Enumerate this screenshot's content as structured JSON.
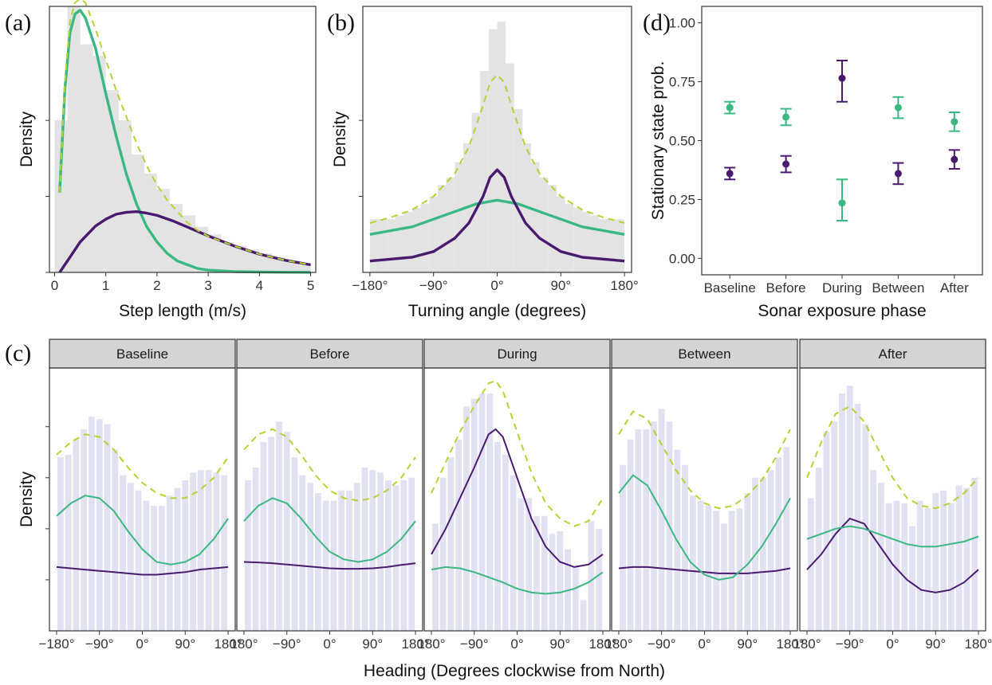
{
  "colors": {
    "moving": "#3ab882",
    "stationary": "#4a1a6e",
    "overall": "#b5d334",
    "hist_grey": "#e3e3e3",
    "hist_lavender": "#e1e1f2",
    "strip_fill": "#d4d4d4",
    "frame": "#333333"
  },
  "chart_data": [
    {
      "id": "a",
      "type": "area",
      "panel_label": "(a)",
      "xlabel": "Step length (m/s)",
      "ylabel": "Density",
      "xlim": [
        -0.1,
        5.1
      ],
      "ylim": [
        0,
        0.7
      ],
      "x_ticks": [
        0,
        1,
        2,
        3,
        4,
        5
      ],
      "x_tick_labels": [
        "0",
        "1",
        "2",
        "3",
        "4",
        "5"
      ],
      "y_tick_values": [
        0,
        0.2,
        0.4
      ],
      "grid": false,
      "histogram": {
        "bin_edges": [
          0.0,
          0.25,
          0.5,
          0.75,
          1.0,
          1.25,
          1.5,
          1.75,
          2.0,
          2.25,
          2.5,
          2.75,
          3.0,
          3.25,
          3.5,
          3.75,
          4.0,
          4.25,
          4.5,
          4.75,
          5.0
        ],
        "density": [
          0.4,
          0.7,
          0.6,
          0.57,
          0.48,
          0.4,
          0.31,
          0.26,
          0.22,
          0.18,
          0.15,
          0.12,
          0.1,
          0.08,
          0.07,
          0.06,
          0.05,
          0.04,
          0.03,
          0.02
        ]
      },
      "series": [
        {
          "state": "moving",
          "style": "solid",
          "x": [
            0.1,
            0.2,
            0.3,
            0.4,
            0.5,
            0.6,
            0.8,
            1.0,
            1.2,
            1.4,
            1.6,
            1.8,
            2.0,
            2.2,
            2.4,
            2.6,
            2.8,
            3.0,
            3.5,
            4.0,
            4.5,
            5.0
          ],
          "y": [
            0.21,
            0.48,
            0.63,
            0.68,
            0.69,
            0.67,
            0.59,
            0.47,
            0.36,
            0.26,
            0.18,
            0.12,
            0.08,
            0.05,
            0.03,
            0.02,
            0.01,
            0.006,
            0.002,
            0.001,
            0.0005,
            0.0002
          ]
        },
        {
          "state": "stationary",
          "style": "solid",
          "x": [
            0.1,
            0.3,
            0.5,
            0.8,
            1.0,
            1.2,
            1.4,
            1.6,
            1.8,
            2.0,
            2.3,
            2.6,
            3.0,
            3.5,
            4.0,
            4.5,
            5.0
          ],
          "y": [
            0.0,
            0.04,
            0.08,
            0.122,
            0.14,
            0.153,
            0.158,
            0.16,
            0.156,
            0.15,
            0.136,
            0.119,
            0.096,
            0.07,
            0.048,
            0.032,
            0.02
          ]
        },
        {
          "state": "overall",
          "style": "dashed",
          "x": [
            0.1,
            0.2,
            0.3,
            0.4,
            0.5,
            0.6,
            0.8,
            1.0,
            1.2,
            1.4,
            1.6,
            1.8,
            2.0,
            2.2,
            2.4,
            2.6,
            2.8,
            3.0,
            3.5,
            4.0,
            4.5,
            5.0
          ],
          "y": [
            0.21,
            0.5,
            0.66,
            0.71,
            0.72,
            0.71,
            0.64,
            0.56,
            0.48,
            0.41,
            0.34,
            0.28,
            0.23,
            0.19,
            0.16,
            0.13,
            0.11,
            0.095,
            0.07,
            0.048,
            0.032,
            0.02
          ]
        }
      ]
    },
    {
      "id": "b",
      "type": "area",
      "panel_label": "(b)",
      "xlabel": "Turning angle (degrees)",
      "ylabel": "Density",
      "xlim": [
        -190,
        190
      ],
      "ylim": [
        0,
        0.7
      ],
      "x_ticks": [
        -180,
        -90,
        0,
        90,
        180
      ],
      "x_tick_labels": [
        "−180°",
        "−90°",
        "0°",
        "90°",
        "180°"
      ],
      "y_tick_values": [
        0.2,
        0.4
      ],
      "grid": false,
      "histogram": {
        "bin_edges": [
          -180,
          -168,
          -156,
          -144,
          -132,
          -120,
          -108,
          -96,
          -84,
          -72,
          -60,
          -48,
          -36,
          -24,
          -12,
          0,
          12,
          24,
          36,
          48,
          60,
          72,
          84,
          96,
          108,
          120,
          132,
          144,
          156,
          168,
          180
        ],
        "density": [
          0.14,
          0.14,
          0.14,
          0.15,
          0.16,
          0.17,
          0.18,
          0.2,
          0.23,
          0.25,
          0.29,
          0.34,
          0.42,
          0.53,
          0.64,
          0.66,
          0.55,
          0.43,
          0.34,
          0.29,
          0.25,
          0.23,
          0.2,
          0.18,
          0.17,
          0.16,
          0.15,
          0.14,
          0.14,
          0.14
        ]
      },
      "series": [
        {
          "state": "moving",
          "style": "solid",
          "x": [
            -180,
            -150,
            -120,
            -90,
            -60,
            -30,
            0,
            30,
            60,
            90,
            120,
            150,
            180
          ],
          "y": [
            0.1,
            0.11,
            0.12,
            0.14,
            0.16,
            0.18,
            0.19,
            0.18,
            0.16,
            0.14,
            0.12,
            0.11,
            0.1
          ]
        },
        {
          "state": "stationary",
          "style": "solid",
          "x": [
            -180,
            -150,
            -120,
            -90,
            -60,
            -40,
            -20,
            -10,
            0,
            10,
            20,
            40,
            60,
            90,
            120,
            150,
            180
          ],
          "y": [
            0.03,
            0.035,
            0.04,
            0.055,
            0.09,
            0.13,
            0.2,
            0.25,
            0.27,
            0.25,
            0.2,
            0.13,
            0.09,
            0.055,
            0.04,
            0.035,
            0.03
          ]
        },
        {
          "state": "overall",
          "style": "dashed",
          "x": [
            -180,
            -150,
            -120,
            -90,
            -60,
            -40,
            -20,
            -10,
            0,
            10,
            20,
            40,
            60,
            90,
            120,
            150,
            180
          ],
          "y": [
            0.13,
            0.145,
            0.165,
            0.2,
            0.26,
            0.33,
            0.44,
            0.5,
            0.52,
            0.5,
            0.44,
            0.33,
            0.26,
            0.2,
            0.165,
            0.145,
            0.13
          ]
        }
      ]
    },
    {
      "id": "d",
      "type": "scatter",
      "panel_label": "(d)",
      "xlabel": "Sonar exposure phase",
      "ylabel": "Stationary state prob.",
      "categories": [
        "Baseline",
        "Before",
        "During",
        "Between",
        "After"
      ],
      "ylim": [
        -0.07,
        1.07
      ],
      "y_ticks": [
        0.0,
        0.25,
        0.5,
        0.75,
        1.0
      ],
      "y_tick_labels": [
        "0.00",
        "0.25",
        "0.50",
        "0.75",
        "1.00"
      ],
      "grid": false,
      "series": [
        {
          "state": "moving",
          "values": [
            0.64,
            0.6,
            0.235,
            0.64,
            0.58
          ],
          "lower": [
            0.615,
            0.565,
            0.16,
            0.595,
            0.54
          ],
          "upper": [
            0.665,
            0.635,
            0.335,
            0.685,
            0.62
          ]
        },
        {
          "state": "stationary",
          "values": [
            0.36,
            0.4,
            0.765,
            0.36,
            0.42
          ],
          "lower": [
            0.335,
            0.365,
            0.665,
            0.315,
            0.38
          ],
          "upper": [
            0.385,
            0.435,
            0.84,
            0.405,
            0.46
          ]
        }
      ]
    },
    {
      "id": "c",
      "type": "area",
      "panel_label": "(c)",
      "xlabel": "Heading (Degrees clockwise from North)",
      "ylabel": "Density",
      "xlim": [
        -195,
        195
      ],
      "ylim": [
        0,
        1.03
      ],
      "x_ticks": [
        -180,
        -90,
        0,
        90,
        180
      ],
      "x_tick_labels": [
        "−180°",
        "−90°",
        "0°",
        "90°",
        "180°"
      ],
      "x_tick_labels_inner": [
        "180°",
        "−90°",
        "0°",
        "90°",
        "180°"
      ],
      "y_tick_values": [
        0.2,
        0.4,
        0.6,
        0.8
      ],
      "grid": false,
      "facets": [
        {
          "name": "Baseline",
          "hist": [
            0.68,
            0.69,
            0.75,
            0.79,
            0.84,
            0.83,
            0.81,
            0.71,
            0.61,
            0.58,
            0.55,
            0.51,
            0.49,
            0.49,
            0.53,
            0.56,
            0.59,
            0.62,
            0.63,
            0.63,
            0.62,
            0.61
          ],
          "overall_x": [
            -180,
            -150,
            -120,
            -90,
            -60,
            -30,
            0,
            30,
            60,
            90,
            120,
            150,
            180
          ],
          "overall_y": [
            0.69,
            0.74,
            0.77,
            0.76,
            0.71,
            0.64,
            0.58,
            0.54,
            0.52,
            0.52,
            0.55,
            0.6,
            0.68
          ],
          "moving_y": [
            0.45,
            0.5,
            0.53,
            0.52,
            0.47,
            0.39,
            0.32,
            0.27,
            0.26,
            0.27,
            0.3,
            0.36,
            0.44
          ],
          "stationary_y": [
            0.25,
            0.245,
            0.24,
            0.235,
            0.23,
            0.225,
            0.22,
            0.22,
            0.225,
            0.23,
            0.24,
            0.245,
            0.25
          ]
        },
        {
          "name": "Before",
          "hist": [
            0.59,
            0.64,
            0.74,
            0.76,
            0.82,
            0.78,
            0.68,
            0.61,
            0.58,
            0.54,
            0.51,
            0.51,
            0.55,
            0.55,
            0.58,
            0.64,
            0.63,
            0.62,
            0.59,
            0.57,
            0.59,
            0.6
          ],
          "overall_x": [
            -180,
            -150,
            -120,
            -90,
            -60,
            -30,
            0,
            30,
            60,
            90,
            120,
            150,
            180
          ],
          "overall_y": [
            0.71,
            0.77,
            0.79,
            0.76,
            0.69,
            0.61,
            0.55,
            0.52,
            0.51,
            0.52,
            0.55,
            0.6,
            0.68
          ],
          "moving_y": [
            0.43,
            0.49,
            0.52,
            0.5,
            0.44,
            0.37,
            0.31,
            0.28,
            0.27,
            0.28,
            0.31,
            0.36,
            0.43
          ],
          "stationary_y": [
            0.27,
            0.268,
            0.265,
            0.26,
            0.255,
            0.25,
            0.245,
            0.243,
            0.243,
            0.245,
            0.25,
            0.258,
            0.265
          ]
        },
        {
          "name": "During",
          "hist": [
            0.42,
            0.6,
            0.68,
            0.75,
            0.88,
            0.91,
            0.93,
            0.93,
            0.74,
            0.69,
            0.61,
            0.52,
            0.52,
            0.45,
            0.45,
            0.38,
            0.39,
            0.32,
            0.25,
            0.12,
            0.43,
            0.4
          ],
          "overall_x": [
            -180,
            -150,
            -120,
            -90,
            -60,
            -45,
            -30,
            0,
            30,
            60,
            90,
            120,
            150,
            180
          ],
          "overall_y": [
            0.54,
            0.66,
            0.78,
            0.88,
            0.97,
            0.98,
            0.94,
            0.78,
            0.62,
            0.5,
            0.44,
            0.41,
            0.43,
            0.52
          ],
          "moving_y": [
            0.24,
            0.25,
            0.245,
            0.23,
            0.21,
            0.2,
            0.19,
            0.165,
            0.15,
            0.145,
            0.15,
            0.165,
            0.19,
            0.23
          ],
          "stationary_y": [
            0.3,
            0.4,
            0.52,
            0.64,
            0.77,
            0.79,
            0.76,
            0.6,
            0.44,
            0.33,
            0.27,
            0.25,
            0.26,
            0.3
          ]
        },
        {
          "name": "Between",
          "hist": [
            0.65,
            0.75,
            0.79,
            0.79,
            0.82,
            0.87,
            0.82,
            0.71,
            0.65,
            0.53,
            0.51,
            0.49,
            0.47,
            0.42,
            0.47,
            0.48,
            0.54,
            0.6,
            0.6,
            0.63,
            0.68,
            0.72
          ],
          "overall_x": [
            -180,
            -150,
            -120,
            -90,
            -60,
            -30,
            0,
            30,
            60,
            90,
            120,
            150,
            180
          ],
          "overall_y": [
            0.77,
            0.86,
            0.83,
            0.73,
            0.63,
            0.55,
            0.5,
            0.48,
            0.49,
            0.53,
            0.59,
            0.68,
            0.79
          ],
          "moving_y": [
            0.54,
            0.61,
            0.57,
            0.47,
            0.36,
            0.27,
            0.22,
            0.2,
            0.21,
            0.26,
            0.33,
            0.42,
            0.52
          ],
          "stationary_y": [
            0.245,
            0.25,
            0.25,
            0.245,
            0.24,
            0.235,
            0.23,
            0.225,
            0.225,
            0.225,
            0.23,
            0.235,
            0.245
          ]
        },
        {
          "name": "After",
          "hist": [
            0.52,
            0.64,
            0.78,
            0.82,
            0.93,
            0.96,
            0.89,
            0.81,
            0.63,
            0.58,
            0.5,
            0.51,
            0.5,
            0.41,
            0.51,
            0.48,
            0.54,
            0.55,
            0.5,
            0.57,
            0.56,
            0.6
          ],
          "overall_x": [
            -180,
            -150,
            -120,
            -90,
            -60,
            -30,
            0,
            30,
            60,
            90,
            120,
            150,
            180
          ],
          "overall_y": [
            0.6,
            0.74,
            0.85,
            0.88,
            0.82,
            0.71,
            0.6,
            0.52,
            0.49,
            0.48,
            0.5,
            0.54,
            0.6
          ],
          "moving_y": [
            0.36,
            0.38,
            0.4,
            0.41,
            0.4,
            0.38,
            0.36,
            0.34,
            0.33,
            0.33,
            0.34,
            0.35,
            0.37
          ],
          "stationary_y": [
            0.24,
            0.3,
            0.38,
            0.44,
            0.42,
            0.34,
            0.26,
            0.2,
            0.16,
            0.15,
            0.16,
            0.19,
            0.24
          ]
        }
      ]
    }
  ]
}
